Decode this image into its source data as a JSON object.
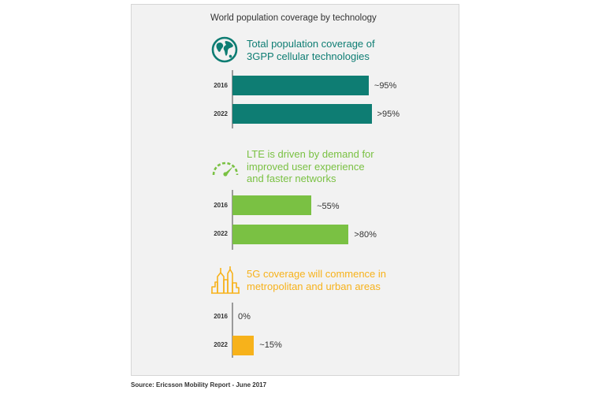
{
  "title": "World population coverage by technology",
  "source": "Source: Ericsson Mobility Report - June 2017",
  "colors": {
    "teal": "#0e7d73",
    "green": "#7ac143",
    "amber": "#f7b21b"
  },
  "sections": [
    {
      "title": [
        "Total population coverage of",
        "3GPP cellular technologies"
      ],
      "icon": "globe-icon",
      "color": "#0e7d73"
    },
    {
      "title": [
        "LTE is driven by demand for",
        "improved user experience",
        "and faster networks"
      ],
      "icon": "speedometer-icon",
      "color": "#7ac143"
    },
    {
      "title": [
        "5G coverage will commence in",
        "metropolitan and urban areas"
      ],
      "icon": "city-skyline-icon",
      "color": "#f7b21b"
    }
  ],
  "chart_data": {
    "type": "bar",
    "title": "World population coverage by technology",
    "categories": [
      "2016",
      "2022"
    ],
    "series": [
      {
        "name": "Total population coverage of 3GPP cellular technologies",
        "values": [
          95,
          97
        ],
        "labels": [
          "~95%",
          ">95%"
        ]
      },
      {
        "name": "LTE is driven by demand for improved user experience and faster networks",
        "values": [
          55,
          81
        ],
        "labels": [
          "~55%",
          ">80%"
        ]
      },
      {
        "name": "5G coverage will commence in metropolitan and urban areas",
        "values": [
          0,
          15
        ],
        "labels": [
          "0%",
          "~15%"
        ]
      }
    ],
    "xlim": [
      0,
      100
    ],
    "grid": false,
    "legend": "none"
  }
}
